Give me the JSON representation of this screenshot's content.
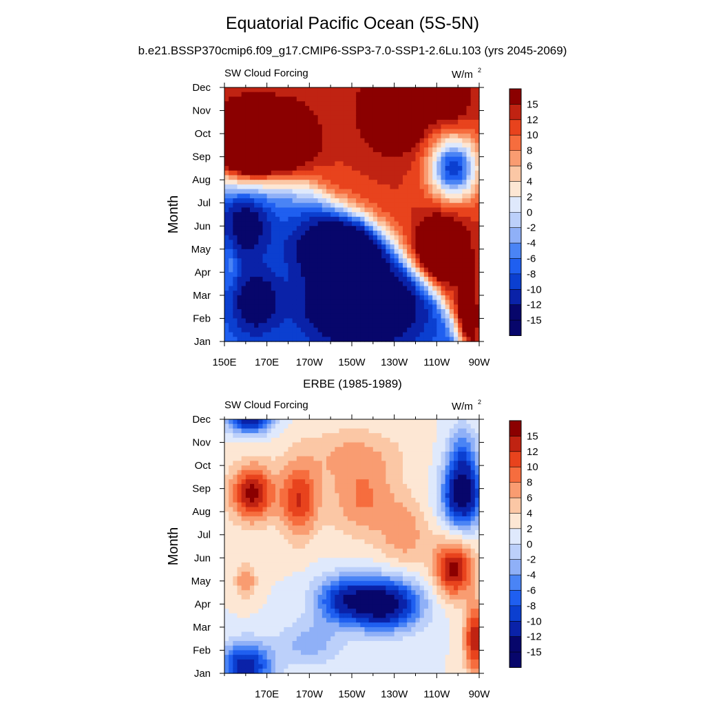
{
  "title": "Equatorial Pacific Ocean (5S-5N)",
  "subtitle": "b.e21.BSSP370cmip6.f09_g17.CMIP6-SSP3-7.0-SSP1-2.6Lu.103 (yrs 2045-2069)",
  "bottom_panel_title": "ERBE (1985-1989)",
  "chart_data": [
    {
      "type": "heatmap",
      "panel": "model",
      "left_label": "SW Cloud Forcing",
      "right_label": "W/m",
      "right_label_sup": "2",
      "ylabel": "Month",
      "x_tick_labels": [
        "150E",
        "170E",
        "170W",
        "150W",
        "130W",
        "110W",
        "90W"
      ],
      "x_tick_lon": [
        150,
        170,
        190,
        210,
        230,
        250,
        270
      ],
      "xlim": [
        150,
        270
      ],
      "y_tick_labels": [
        "Jan",
        "Feb",
        "Mar",
        "Apr",
        "May",
        "Jun",
        "Jul",
        "Aug",
        "Sep",
        "Oct",
        "Nov",
        "Dec"
      ],
      "colorbar_labels": [
        "15",
        "12",
        "10",
        "8",
        "6",
        "4",
        "2",
        "0",
        "-2",
        "-4",
        "-6",
        "-8",
        "-10",
        "-12",
        "-15"
      ],
      "features": [
        {
          "lon": 175,
          "month": 9.8,
          "value": 20,
          "slon": 14,
          "smon": 1.2
        },
        {
          "lon": 160,
          "month": 9.5,
          "value": 15,
          "slon": 12,
          "smon": 1.5
        },
        {
          "lon": 230,
          "month": 11.0,
          "value": 12,
          "slon": 14,
          "smon": 1.5
        },
        {
          "lon": 255,
          "month": 11.5,
          "value": 7,
          "slon": 10,
          "smon": 1.0
        },
        {
          "lon": 258,
          "month": 8.5,
          "value": -22,
          "slon": 11,
          "smon": 1.3
        },
        {
          "lon": 252,
          "month": 5.0,
          "value": 17,
          "slon": 10,
          "smon": 1.2
        },
        {
          "lon": 264,
          "month": 1.5,
          "value": 8,
          "slon": 5,
          "smon": 2.0
        },
        {
          "lon": 215,
          "month": 2.5,
          "value": -23,
          "slon": 23,
          "smon": 1.5
        },
        {
          "lon": 205,
          "month": 5.0,
          "value": -19,
          "slon": 19,
          "smon": 1.3
        },
        {
          "lon": 165,
          "month": 2.7,
          "value": -12,
          "slon": 10,
          "smon": 1.2
        },
        {
          "lon": 160,
          "month": 6.0,
          "value": -10,
          "slon": 10,
          "smon": 1.3
        },
        {
          "lon": 153,
          "month": 4.5,
          "value": 3,
          "slon": 3,
          "smon": 1.2
        }
      ],
      "front": {
        "value": 10,
        "neg_value": -9,
        "width_months": 0.8,
        "points": [
          [
            150,
            8.1
          ],
          [
            160,
            8.0
          ],
          [
            190,
            7.6
          ],
          [
            215,
            6.2
          ],
          [
            230,
            5.0
          ],
          [
            250,
            3.0
          ],
          [
            262,
            1.2
          ],
          [
            268,
            0.3
          ]
        ]
      }
    },
    {
      "type": "heatmap",
      "panel": "observations",
      "left_label": "SW Cloud Forcing",
      "right_label": "W/m",
      "right_label_sup": "2",
      "ylabel": "Month",
      "x_tick_labels": [
        "170E",
        "170W",
        "150W",
        "130W",
        "110W",
        "90W"
      ],
      "x_tick_lon": [
        170,
        190,
        210,
        230,
        250,
        270
      ],
      "xlim": [
        150,
        270
      ],
      "y_tick_labels": [
        "Jan",
        "Feb",
        "Mar",
        "Apr",
        "May",
        "Jun",
        "Jul",
        "Aug",
        "Sep",
        "Oct",
        "Nov",
        "Dec"
      ],
      "colorbar_labels": [
        "15",
        "12",
        "10",
        "8",
        "6",
        "4",
        "2",
        "0",
        "-2",
        "-4",
        "-6",
        "-8",
        "-10",
        "-12",
        "-15"
      ],
      "features": [
        {
          "lon": 163,
          "month": 8.8,
          "value": 13,
          "slon": 10,
          "smon": 1.2
        },
        {
          "lon": 185,
          "month": 8.5,
          "value": 10,
          "slon": 9,
          "smon": 1.6
        },
        {
          "lon": 215,
          "month": 8.5,
          "value": 6,
          "slon": 16,
          "smon": 1.6
        },
        {
          "lon": 210,
          "month": 10.5,
          "value": 4,
          "slon": 25,
          "smon": 1.2
        },
        {
          "lon": 235,
          "month": 7.0,
          "value": 5,
          "slon": 12,
          "smon": 1.5
        },
        {
          "lon": 258,
          "month": 5.5,
          "value": 13,
          "slon": 9,
          "smon": 1.2
        },
        {
          "lon": 268,
          "month": 2.5,
          "value": 12,
          "slon": 5,
          "smon": 1.5
        },
        {
          "lon": 262,
          "month": 8.7,
          "value": -18,
          "slon": 9,
          "smon": 1.3
        },
        {
          "lon": 262,
          "month": 10.5,
          "value": -8,
          "slon": 7,
          "smon": 1.2
        },
        {
          "lon": 225,
          "month": 4.0,
          "value": -18,
          "slon": 17,
          "smon": 1.1
        },
        {
          "lon": 205,
          "month": 4.2,
          "value": -10,
          "slon": 13,
          "smon": 1.0
        },
        {
          "lon": 160,
          "month": 1.3,
          "value": -14,
          "slon": 12,
          "smon": 1.0
        },
        {
          "lon": 162,
          "month": 12.0,
          "value": -15,
          "slon": 10,
          "smon": 0.6
        },
        {
          "lon": 190,
          "month": 2.3,
          "value": -5,
          "slon": 15,
          "smon": 1.0
        },
        {
          "lon": 160,
          "month": 5.0,
          "value": 6,
          "slon": 5,
          "smon": 0.8
        }
      ],
      "front": null
    }
  ]
}
